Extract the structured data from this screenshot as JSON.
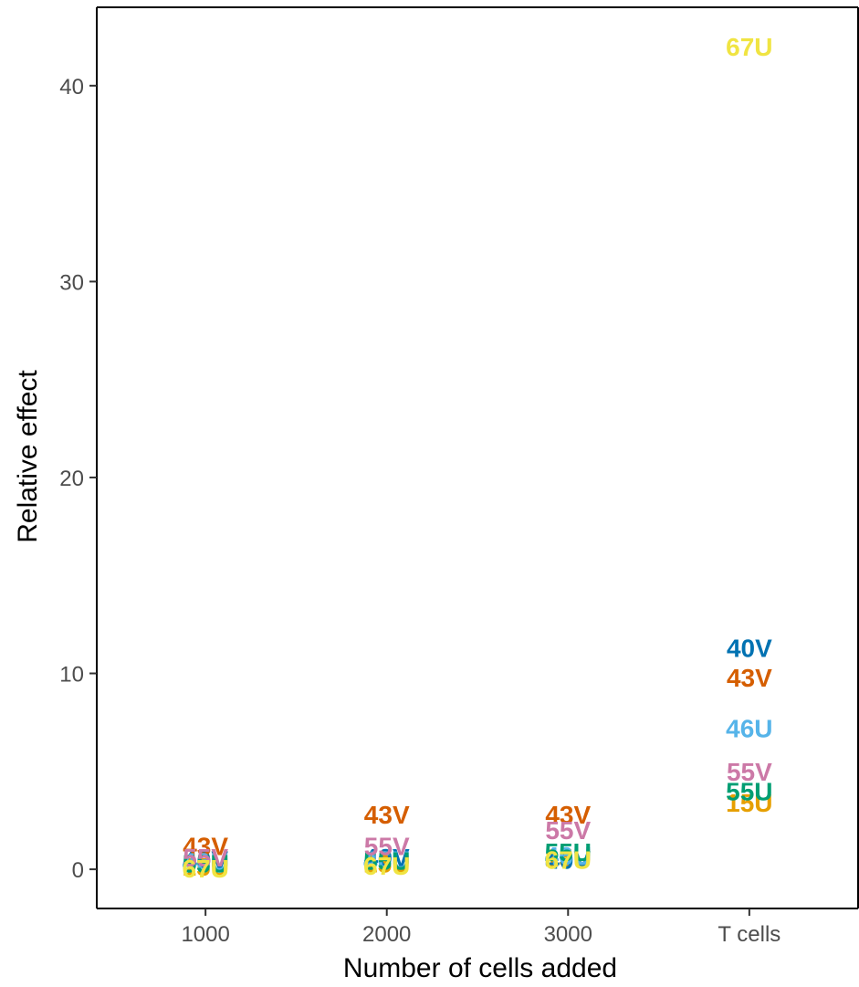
{
  "chart_data": {
    "type": "scatter",
    "xlabel": "Number of cells added",
    "ylabel": "Relative effect",
    "categories": [
      "1000",
      "2000",
      "3000",
      "T cells"
    ],
    "ylim": [
      -2,
      44
    ],
    "yticks": [
      0,
      10,
      20,
      30,
      40
    ],
    "grid": false,
    "legend": "none",
    "series": [
      {
        "name": "15U",
        "color": "#E69F00",
        "values": [
          0.15,
          0.3,
          0.6,
          3.4
        ]
      },
      {
        "name": "40V",
        "color": "#0072B2",
        "values": [
          0.5,
          0.6,
          0.5,
          11.3
        ]
      },
      {
        "name": "43V",
        "color": "#D55E00",
        "values": [
          1.2,
          2.8,
          2.8,
          9.8
        ]
      },
      {
        "name": "46U",
        "color": "#56B4E9",
        "values": [
          0.4,
          0.5,
          0.7,
          7.2
        ]
      },
      {
        "name": "55U",
        "color": "#009E73",
        "values": [
          0.3,
          0.45,
          0.9,
          4.0
        ]
      },
      {
        "name": "55V",
        "color": "#CC79A7",
        "values": [
          0.6,
          1.2,
          2.0,
          5.0
        ]
      },
      {
        "name": "67U",
        "color": "#F0E442",
        "values": [
          0.05,
          0.2,
          0.5,
          42.0
        ]
      }
    ]
  }
}
